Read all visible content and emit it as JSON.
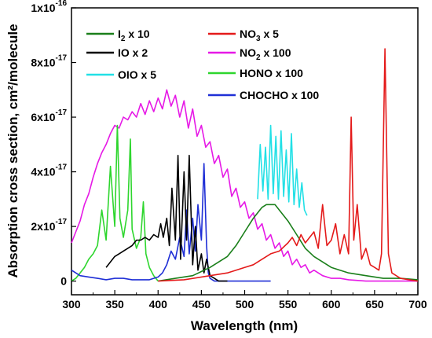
{
  "chart_data": {
    "type": "line",
    "xlabel": "Wavelength (nm)",
    "ylabel": "Absorption cross section, cm²/molecule",
    "xlim": [
      300,
      700
    ],
    "ylim": [
      -5e-18,
      1e-16
    ],
    "xticks": [
      300,
      350,
      400,
      450,
      500,
      550,
      600,
      650,
      700
    ],
    "yticks": [
      {
        "value": 0,
        "label": "0"
      },
      {
        "value": 2e-17,
        "label": "2x10",
        "exp": "-17"
      },
      {
        "value": 4e-17,
        "label": "4x10",
        "exp": "-17"
      },
      {
        "value": 6e-17,
        "label": "6x10",
        "exp": "-17"
      },
      {
        "value": 8e-17,
        "label": "8x10",
        "exp": "-17"
      },
      {
        "value": 1e-16,
        "label": "1x10",
        "exp": "-16"
      }
    ],
    "legend": [
      {
        "name": "I2 x 10",
        "text": "I",
        "sub": "2",
        "rest": " x 10",
        "color": "#1a7f1a"
      },
      {
        "name": "IO x 2",
        "text": "IO x 2",
        "color": "#000000"
      },
      {
        "name": "OIO x 5",
        "text": "OIO x 5",
        "color": "#22e0e6"
      },
      {
        "name": "NO3 x 5",
        "text": "NO",
        "sub": "3",
        "rest": " x 5",
        "color": "#e41a1a"
      },
      {
        "name": "NO2 x 100",
        "text": "NO",
        "sub": "2",
        "rest": " x 100",
        "color": "#e619e6"
      },
      {
        "name": "HONO x 100",
        "text": "HONO x 100",
        "color": "#2ed62e"
      },
      {
        "name": "CHOCHO x 100",
        "text": "CHOCHO x 100",
        "color": "#1f2fd6"
      }
    ],
    "series": [
      {
        "name": "NO2 x 100",
        "color": "#e619e6",
        "x": [
          300,
          305,
          310,
          315,
          320,
          325,
          330,
          335,
          340,
          345,
          350,
          355,
          360,
          365,
          370,
          375,
          380,
          385,
          390,
          395,
          400,
          405,
          410,
          415,
          420,
          425,
          430,
          435,
          440,
          445,
          450,
          455,
          460,
          465,
          470,
          475,
          480,
          485,
          490,
          495,
          500,
          505,
          510,
          515,
          520,
          525,
          530,
          535,
          540,
          545,
          550,
          555,
          560,
          565,
          570,
          575,
          580,
          590,
          600,
          610,
          620,
          640,
          660,
          680,
          700
        ],
        "y": [
          1.4e-17,
          1.8e-17,
          2.2e-17,
          2.8e-17,
          3.2e-17,
          3.8e-17,
          4.3e-17,
          4.7e-17,
          5e-17,
          5.4e-17,
          5.7e-17,
          5.6e-17,
          6e-17,
          5.9e-17,
          6.2e-17,
          6e-17,
          6.5e-17,
          6.1e-17,
          6.6e-17,
          6.2e-17,
          6.7e-17,
          6.3e-17,
          7e-17,
          6.4e-17,
          6.8e-17,
          6e-17,
          6.6e-17,
          5.6e-17,
          6.3e-17,
          5.3e-17,
          5.7e-17,
          4.9e-17,
          5.1e-17,
          4.3e-17,
          4.6e-17,
          3.8e-17,
          4.1e-17,
          3.1e-17,
          3.4e-17,
          2.7e-17,
          2.9e-17,
          2.3e-17,
          2.5e-17,
          1.9e-17,
          2.1e-17,
          1.5e-17,
          1.7e-17,
          1.2e-17,
          1.4e-17,
          9e-18,
          1.1e-17,
          6e-18,
          8e-18,
          5e-18,
          6e-18,
          3e-18,
          4e-18,
          2e-18,
          1e-18,
          1e-18,
          5e-19,
          0.0,
          0.0,
          0.0,
          0.0
        ]
      },
      {
        "name": "HONO x 100",
        "color": "#2ed62e",
        "x": [
          300,
          305,
          310,
          315,
          320,
          325,
          330,
          335,
          340,
          345,
          350,
          353,
          356,
          360,
          365,
          368,
          370,
          375,
          380,
          383,
          386,
          390,
          395,
          400
        ],
        "y": [
          0.0,
          1e-18,
          3e-18,
          5e-18,
          8e-18,
          1e-17,
          1.3e-17,
          2.6e-17,
          1.5e-17,
          4.2e-17,
          2e-17,
          5.7e-17,
          2.3e-17,
          1.6e-17,
          2.6e-17,
          5.2e-17,
          1.9e-17,
          1.2e-17,
          1.6e-17,
          2.9e-17,
          1e-17,
          5e-18,
          2e-18,
          0.0
        ]
      },
      {
        "name": "CHOCHO x 100",
        "color": "#1f2fd6",
        "x": [
          300,
          310,
          320,
          330,
          340,
          350,
          360,
          370,
          380,
          390,
          400,
          405,
          410,
          415,
          420,
          425,
          430,
          433,
          436,
          440,
          443,
          446,
          450,
          453,
          456,
          458,
          460,
          465,
          470,
          480,
          500,
          530
        ],
        "y": [
          4e-18,
          2e-18,
          1.5e-18,
          1e-18,
          5e-19,
          1e-18,
          1e-18,
          5e-19,
          5e-19,
          5e-19,
          1.5e-18,
          3e-18,
          6e-18,
          1.1e-17,
          8e-18,
          1.6e-17,
          9e-18,
          2.6e-17,
          1e-17,
          2.3e-17,
          1.1e-17,
          2.8e-17,
          1.5e-17,
          4.3e-17,
          1.3e-17,
          3e-18,
          1e-18,
          0.0,
          0.0,
          0.0,
          0.0,
          0.0
        ]
      },
      {
        "name": "IO x 2",
        "color": "#000000",
        "x": [
          340,
          345,
          350,
          355,
          360,
          365,
          370,
          375,
          380,
          385,
          390,
          395,
          400,
          403,
          406,
          410,
          413,
          416,
          420,
          423,
          426,
          430,
          433,
          436,
          440,
          443,
          446,
          450,
          453,
          456,
          460,
          465,
          470,
          480
        ],
        "y": [
          5e-18,
          7e-18,
          9e-18,
          1e-17,
          1.1e-17,
          1.2e-17,
          1.3e-17,
          1.5e-17,
          1.5e-17,
          1.6e-17,
          1.5e-17,
          1.7e-17,
          1.6e-17,
          2.1e-17,
          1.6e-17,
          2.3e-17,
          1.3e-17,
          3.4e-17,
          1.5e-17,
          4.6e-17,
          8e-18,
          4e-17,
          1.5e-17,
          4.6e-17,
          6e-18,
          2e-17,
          4e-18,
          1e-17,
          3e-18,
          8e-18,
          2e-18,
          1e-18,
          0.0,
          0.0
        ]
      },
      {
        "name": "I2 x 10",
        "color": "#1a7f1a",
        "x": [
          400,
          420,
          440,
          460,
          480,
          490,
          500,
          510,
          520,
          525,
          530,
          535,
          540,
          550,
          560,
          570,
          580,
          600,
          620,
          640,
          660,
          680,
          700
        ],
        "y": [
          0.0,
          1e-18,
          2e-18,
          5e-18,
          9e-18,
          1.3e-17,
          1.8e-17,
          2.3e-17,
          2.7e-17,
          2.8e-17,
          2.8e-17,
          2.8e-17,
          2.6e-17,
          2.2e-17,
          1.7e-17,
          1.2e-17,
          9e-18,
          5e-18,
          3e-18,
          2e-18,
          1e-18,
          1e-18,
          5e-19
        ]
      },
      {
        "name": "OIO x 5",
        "color": "#22e0e6",
        "x": [
          515,
          518,
          521,
          524,
          527,
          530,
          533,
          536,
          539,
          542,
          545,
          548,
          551,
          554,
          557,
          560,
          563,
          566,
          569,
          572
        ],
        "y": [
          3e-17,
          5e-17,
          3.3e-17,
          4.9e-17,
          3e-17,
          5.7e-17,
          3.2e-17,
          5.3e-17,
          3e-17,
          5.5e-17,
          3.1e-17,
          4.8e-17,
          2.9e-17,
          5.4e-17,
          2.8e-17,
          4.1e-17,
          2.7e-17,
          3.6e-17,
          2.6e-17,
          2.4e-17
        ]
      },
      {
        "name": "NO3 x 5",
        "color": "#e41a1a",
        "x": [
          400,
          430,
          460,
          480,
          500,
          510,
          520,
          530,
          540,
          550,
          555,
          560,
          565,
          570,
          575,
          580,
          585,
          590,
          595,
          600,
          605,
          610,
          615,
          620,
          623,
          626,
          630,
          635,
          640,
          645,
          650,
          655,
          658,
          662,
          666,
          670,
          680,
          690,
          700
        ],
        "y": [
          0.0,
          5e-19,
          2e-18,
          3e-18,
          5e-18,
          6e-18,
          8e-18,
          1e-17,
          1.1e-17,
          1.4e-17,
          1.6e-17,
          1.3e-17,
          1.7e-17,
          1.4e-17,
          1.6e-17,
          1.8e-17,
          1.2e-17,
          2.8e-17,
          1.3e-17,
          1.5e-17,
          2.1e-17,
          1e-17,
          1.7e-17,
          1e-17,
          6e-17,
          1.5e-17,
          2.8e-17,
          8e-18,
          1.2e-17,
          6e-18,
          5e-18,
          4e-18,
          1e-17,
          8.5e-17,
          1e-17,
          3e-18,
          1e-18,
          5e-19,
          0.0
        ]
      }
    ]
  }
}
